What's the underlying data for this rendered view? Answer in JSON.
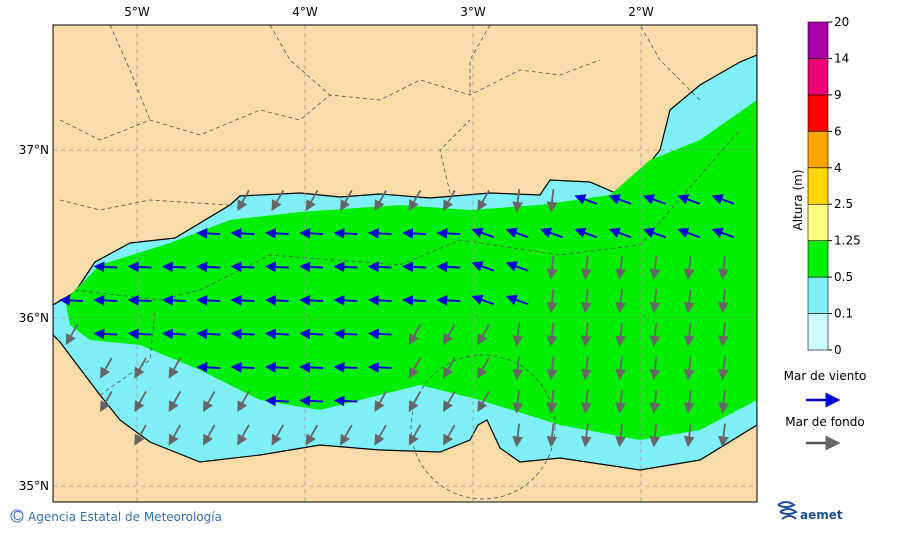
{
  "map": {
    "lon_labels": [
      "5°W",
      "4°W",
      "3°W",
      "2°W"
    ],
    "lat_labels": [
      "37°N",
      "36°N",
      "35°N"
    ]
  },
  "colorbar": {
    "title": "Altura (m)",
    "levels": [
      0,
      0.1,
      0.5,
      1.25,
      2.5,
      4,
      6,
      9,
      14,
      20
    ],
    "colors": [
      "#ccfcfc",
      "#80f0f8",
      "#00ee00",
      "#ffff80",
      "#ffd700",
      "#ffa500",
      "#ff0000",
      "#ee0077",
      "#aa00aa"
    ]
  },
  "legend": {
    "items": [
      {
        "name": "Mar de viento",
        "color": "#0000dd"
      },
      {
        "name": "Mar de fondo",
        "color": "#555555"
      }
    ]
  },
  "footer": {
    "credit": "Agencia Estatal de Meteorología",
    "logo": "aemet"
  }
}
